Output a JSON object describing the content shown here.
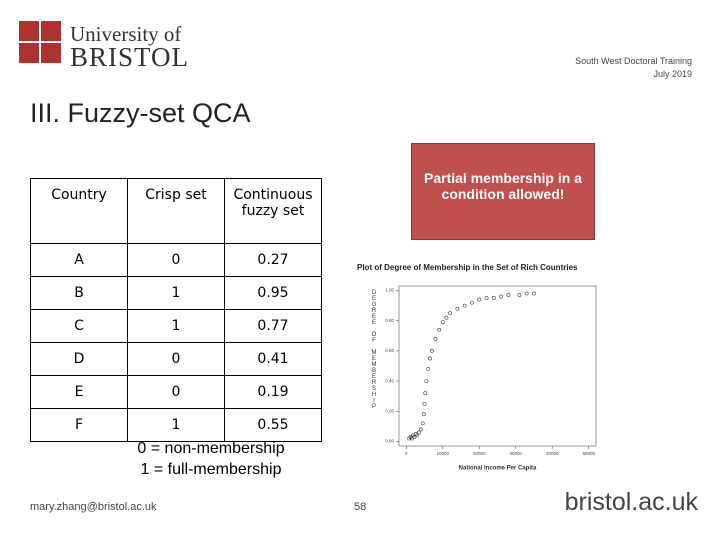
{
  "logo": {
    "line1": "University of",
    "line2": "BRISTOL"
  },
  "header": {
    "program": "South West Doctoral Training",
    "date": "July 2019"
  },
  "title": "III. Fuzzy-set QCA",
  "table": {
    "headers": [
      "Country",
      "Crisp set",
      "Continuous fuzzy set"
    ],
    "rows": [
      [
        "A",
        "0",
        "0.27"
      ],
      [
        "B",
        "1",
        "0.95"
      ],
      [
        "C",
        "1",
        "0.77"
      ],
      [
        "D",
        "0",
        "0.41"
      ],
      [
        "E",
        "0",
        "0.19"
      ],
      [
        "F",
        "1",
        "0.55"
      ]
    ]
  },
  "callout": "Partial membership in a condition allowed!",
  "notes": [
    "0 = non-membership",
    "1 = full-membership"
  ],
  "footer": {
    "email": "mary.zhang@bristol.ac.uk",
    "page": "58",
    "site": "bristol.ac.uk"
  },
  "chart_data": {
    "type": "scatter",
    "title": "Plot of Degree of Membership in the Set of Rich Countries",
    "x_label": "National Income Per Capita",
    "y_label": "DEGREE OF MEMBERSHIP",
    "x": [
      800,
      1200,
      1500,
      1800,
      2200,
      2600,
      3000,
      3500,
      4000,
      4500,
      4800,
      5000,
      5200,
      5500,
      6000,
      6500,
      7000,
      8000,
      9000,
      10000,
      11000,
      12000,
      14000,
      16000,
      18000,
      20000,
      22000,
      24000,
      26000,
      28000,
      31000,
      33000,
      35000
    ],
    "y": [
      0.02,
      0.03,
      0.02,
      0.04,
      0.03,
      0.05,
      0.04,
      0.06,
      0.08,
      0.12,
      0.18,
      0.25,
      0.32,
      0.4,
      0.48,
      0.55,
      0.6,
      0.68,
      0.74,
      0.79,
      0.82,
      0.85,
      0.88,
      0.9,
      0.92,
      0.94,
      0.95,
      0.95,
      0.96,
      0.97,
      0.97,
      0.98,
      0.98
    ],
    "color": "#333333",
    "xlim": [
      -2000,
      52000
    ],
    "ylim": [
      -0.03,
      1.03
    ],
    "xticks": [
      0,
      10000,
      20000,
      30000,
      40000,
      50000
    ],
    "yticks": [
      {
        "value": 0,
        "label": "0.00"
      },
      {
        "value": 0.2,
        "label": "0.20"
      },
      {
        "value": 0.4,
        "label": "0.40"
      },
      {
        "value": 0.6,
        "label": "0.60"
      },
      {
        "value": 0.8,
        "label": "0.80"
      },
      {
        "value": 1,
        "label": "1.00"
      }
    ]
  }
}
